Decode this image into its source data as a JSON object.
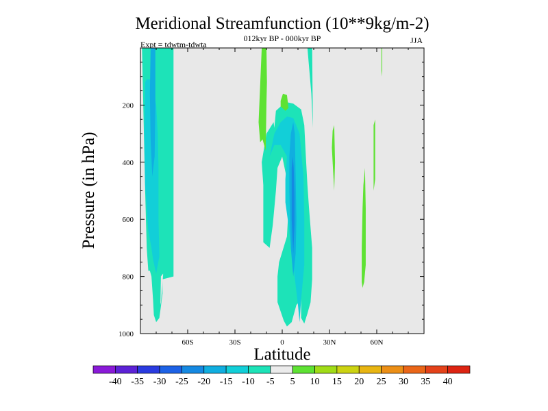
{
  "chart_data": {
    "type": "heatmap",
    "title": "Meridional Streamfunction (10**9kg/m-2)",
    "subtitle": "012kyr BP - 000kyr BP",
    "experiment_label": "Expt = tdwtm-tdwta",
    "season_label": "JJA",
    "xlabel": "Latitude",
    "ylabel": "Pressure (in hPa)",
    "xlim": [
      -90,
      90
    ],
    "ylim": [
      1000,
      0
    ],
    "x_ticks": [
      {
        "value": -60,
        "label": "60S"
      },
      {
        "value": -30,
        "label": "30S"
      },
      {
        "value": 0,
        "label": "0"
      },
      {
        "value": 30,
        "label": "30N"
      },
      {
        "value": 60,
        "label": "60N"
      }
    ],
    "y_ticks": [
      {
        "value": 200,
        "label": "200"
      },
      {
        "value": 400,
        "label": "400"
      },
      {
        "value": 600,
        "label": "600"
      },
      {
        "value": 800,
        "label": "800"
      },
      {
        "value": 1000,
        "label": "1000"
      }
    ],
    "background_color": "#e8e8e8",
    "colorbar": {
      "levels": [
        "-40",
        "-35",
        "-30",
        "-25",
        "-20",
        "-15",
        "-10",
        "-5",
        "5",
        "10",
        "15",
        "20",
        "25",
        "30",
        "35",
        "40"
      ],
      "colors": [
        "#8a1ad8",
        "#5c22d6",
        "#2a3be0",
        "#1d62e6",
        "#1589e2",
        "#10aee0",
        "#12cfd8",
        "#1de3b8",
        "#ebebeb",
        "#5ee233",
        "#a0dc17",
        "#ccd312",
        "#e8b512",
        "#ec8f16",
        "#ea6618",
        "#e4421a",
        "#dd2412"
      ]
    },
    "regions": [
      {
        "name": "southern-polar-negative",
        "value": -10,
        "band": 7,
        "lat": [
          -90,
          -89,
          -88,
          -87,
          -86,
          -85,
          -84,
          -83,
          -82,
          -81.5,
          -80,
          -78,
          -77,
          -76,
          -76,
          -69,
          -69
        ],
        "p": [
          0,
          0,
          250,
          500,
          700,
          780,
          780,
          800,
          880,
          935,
          960,
          945,
          905,
          860,
          810,
          800,
          0
        ]
      },
      {
        "name": "southern-polar-core-1",
        "value": -15,
        "band": 6,
        "lat": [
          -87,
          -87.5,
          -87,
          -86,
          -85,
          -83,
          -82,
          -80,
          -78,
          -78.5,
          -78.5,
          -79,
          -80,
          -82,
          -84,
          -86
        ],
        "p": [
          120,
          300,
          480,
          560,
          640,
          700,
          740,
          790,
          730,
          600,
          420,
          300,
          200,
          140,
          110,
          110
        ]
      },
      {
        "name": "southern-polar-core-2",
        "value": -20,
        "band": 5,
        "lat": [
          -83.5,
          -84,
          -83.5,
          -82.5,
          -81,
          -80.5,
          -80.5,
          -82
        ],
        "p": [
          0,
          160,
          320,
          450,
          380,
          210,
          0,
          0
        ]
      },
      {
        "name": "equatorial-negative",
        "value": -10,
        "band": 7,
        "lat": [
          -13,
          -10,
          -5.5,
          -5,
          -4,
          0,
          3,
          7,
          12,
          14,
          15,
          16,
          17,
          19,
          19,
          18,
          16,
          14,
          12,
          12,
          9,
          6,
          3,
          1,
          -3,
          -3,
          -2,
          3,
          4,
          3,
          0,
          -3,
          -4,
          -6,
          -8,
          -12,
          -12
        ],
        "p": [
          400,
          300,
          260,
          280,
          220,
          200,
          190,
          195,
          215,
          270,
          380,
          480,
          560,
          700,
          810,
          890,
          930,
          965,
          945,
          880,
          900,
          960,
          975,
          955,
          890,
          800,
          750,
          660,
          560,
          460,
          380,
          420,
          500,
          620,
          700,
          680,
          480
        ]
      },
      {
        "name": "equatorial-core-1",
        "value": -15,
        "band": 6,
        "lat": [
          -8,
          -5,
          -1,
          3,
          7,
          11,
          13.5,
          14,
          14,
          12,
          11,
          10,
          7,
          4,
          2,
          2,
          3,
          -1,
          -5,
          -8
        ],
        "p": [
          380,
          300,
          260,
          240,
          245,
          300,
          450,
          600,
          760,
          880,
          960,
          900,
          760,
          620,
          540,
          460,
          380,
          340,
          340,
          380
        ]
      },
      {
        "name": "equatorial-core-2",
        "value": -20,
        "band": 5,
        "lat": [
          4.5,
          5.5,
          7,
          8,
          8.5,
          9,
          8.5,
          7,
          5.5,
          4.5
        ],
        "p": [
          380,
          300,
          260,
          300,
          450,
          600,
          720,
          800,
          700,
          500
        ]
      },
      {
        "name": "equatorial-core-3",
        "value": -25,
        "band": 4,
        "lat": [
          6,
          6.7,
          7.3,
          7.8,
          7.8,
          7,
          6
        ],
        "p": [
          420,
          380,
          420,
          520,
          620,
          720,
          600
        ]
      },
      {
        "name": "southern-midlat-gap",
        "value": 0,
        "band": 8,
        "lat": [
          -77,
          -75.6,
          -75.6,
          -77.1,
          -77.3
        ],
        "p": [
          800,
          790,
          795,
          900,
          890
        ]
      },
      {
        "name": "upper-tropical-positive",
        "value": 5,
        "band": 9,
        "lat": [
          -13,
          -10,
          -9.7,
          -10,
          -10.5,
          -12.5,
          -14,
          -15
        ],
        "p": [
          0,
          0,
          120,
          190,
          360,
          320,
          330,
          260
        ]
      },
      {
        "name": "upper-tropical-positive-blob",
        "value": 5,
        "band": 9,
        "lat": [
          -1,
          0.5,
          3,
          4,
          2,
          -1
        ],
        "p": [
          185,
          160,
          165,
          210,
          220,
          205
        ]
      },
      {
        "name": "northern-tropical-negative",
        "value": -10,
        "band": 7,
        "lat": [
          16,
          19,
          19.5,
          18.5
        ],
        "p": [
          0,
          0,
          280,
          160
        ]
      },
      {
        "name": "northern-subtropical-positive",
        "value": 5,
        "band": 9,
        "lat": [
          32,
          33,
          33.5,
          33,
          32,
          31.5
        ],
        "p": [
          290,
          270,
          400,
          500,
          400,
          350
        ]
      },
      {
        "name": "northern-midlat-positive",
        "value": 5,
        "band": 9,
        "lat": [
          51.5,
          52.5,
          53,
          53,
          52,
          51,
          50.5,
          50.5,
          51
        ],
        "p": [
          480,
          420,
          560,
          760,
          820,
          840,
          820,
          700,
          560
        ]
      },
      {
        "name": "northern-midlat-positive-2",
        "value": 5,
        "band": 9,
        "lat": [
          58,
          59,
          59,
          58
        ],
        "p": [
          270,
          250,
          460,
          500
        ]
      },
      {
        "name": "northern-upper-positive",
        "value": 5,
        "band": 9,
        "lat": [
          63,
          63.5,
          63.5,
          63
        ],
        "p": [
          0,
          0,
          80,
          100
        ]
      }
    ]
  }
}
